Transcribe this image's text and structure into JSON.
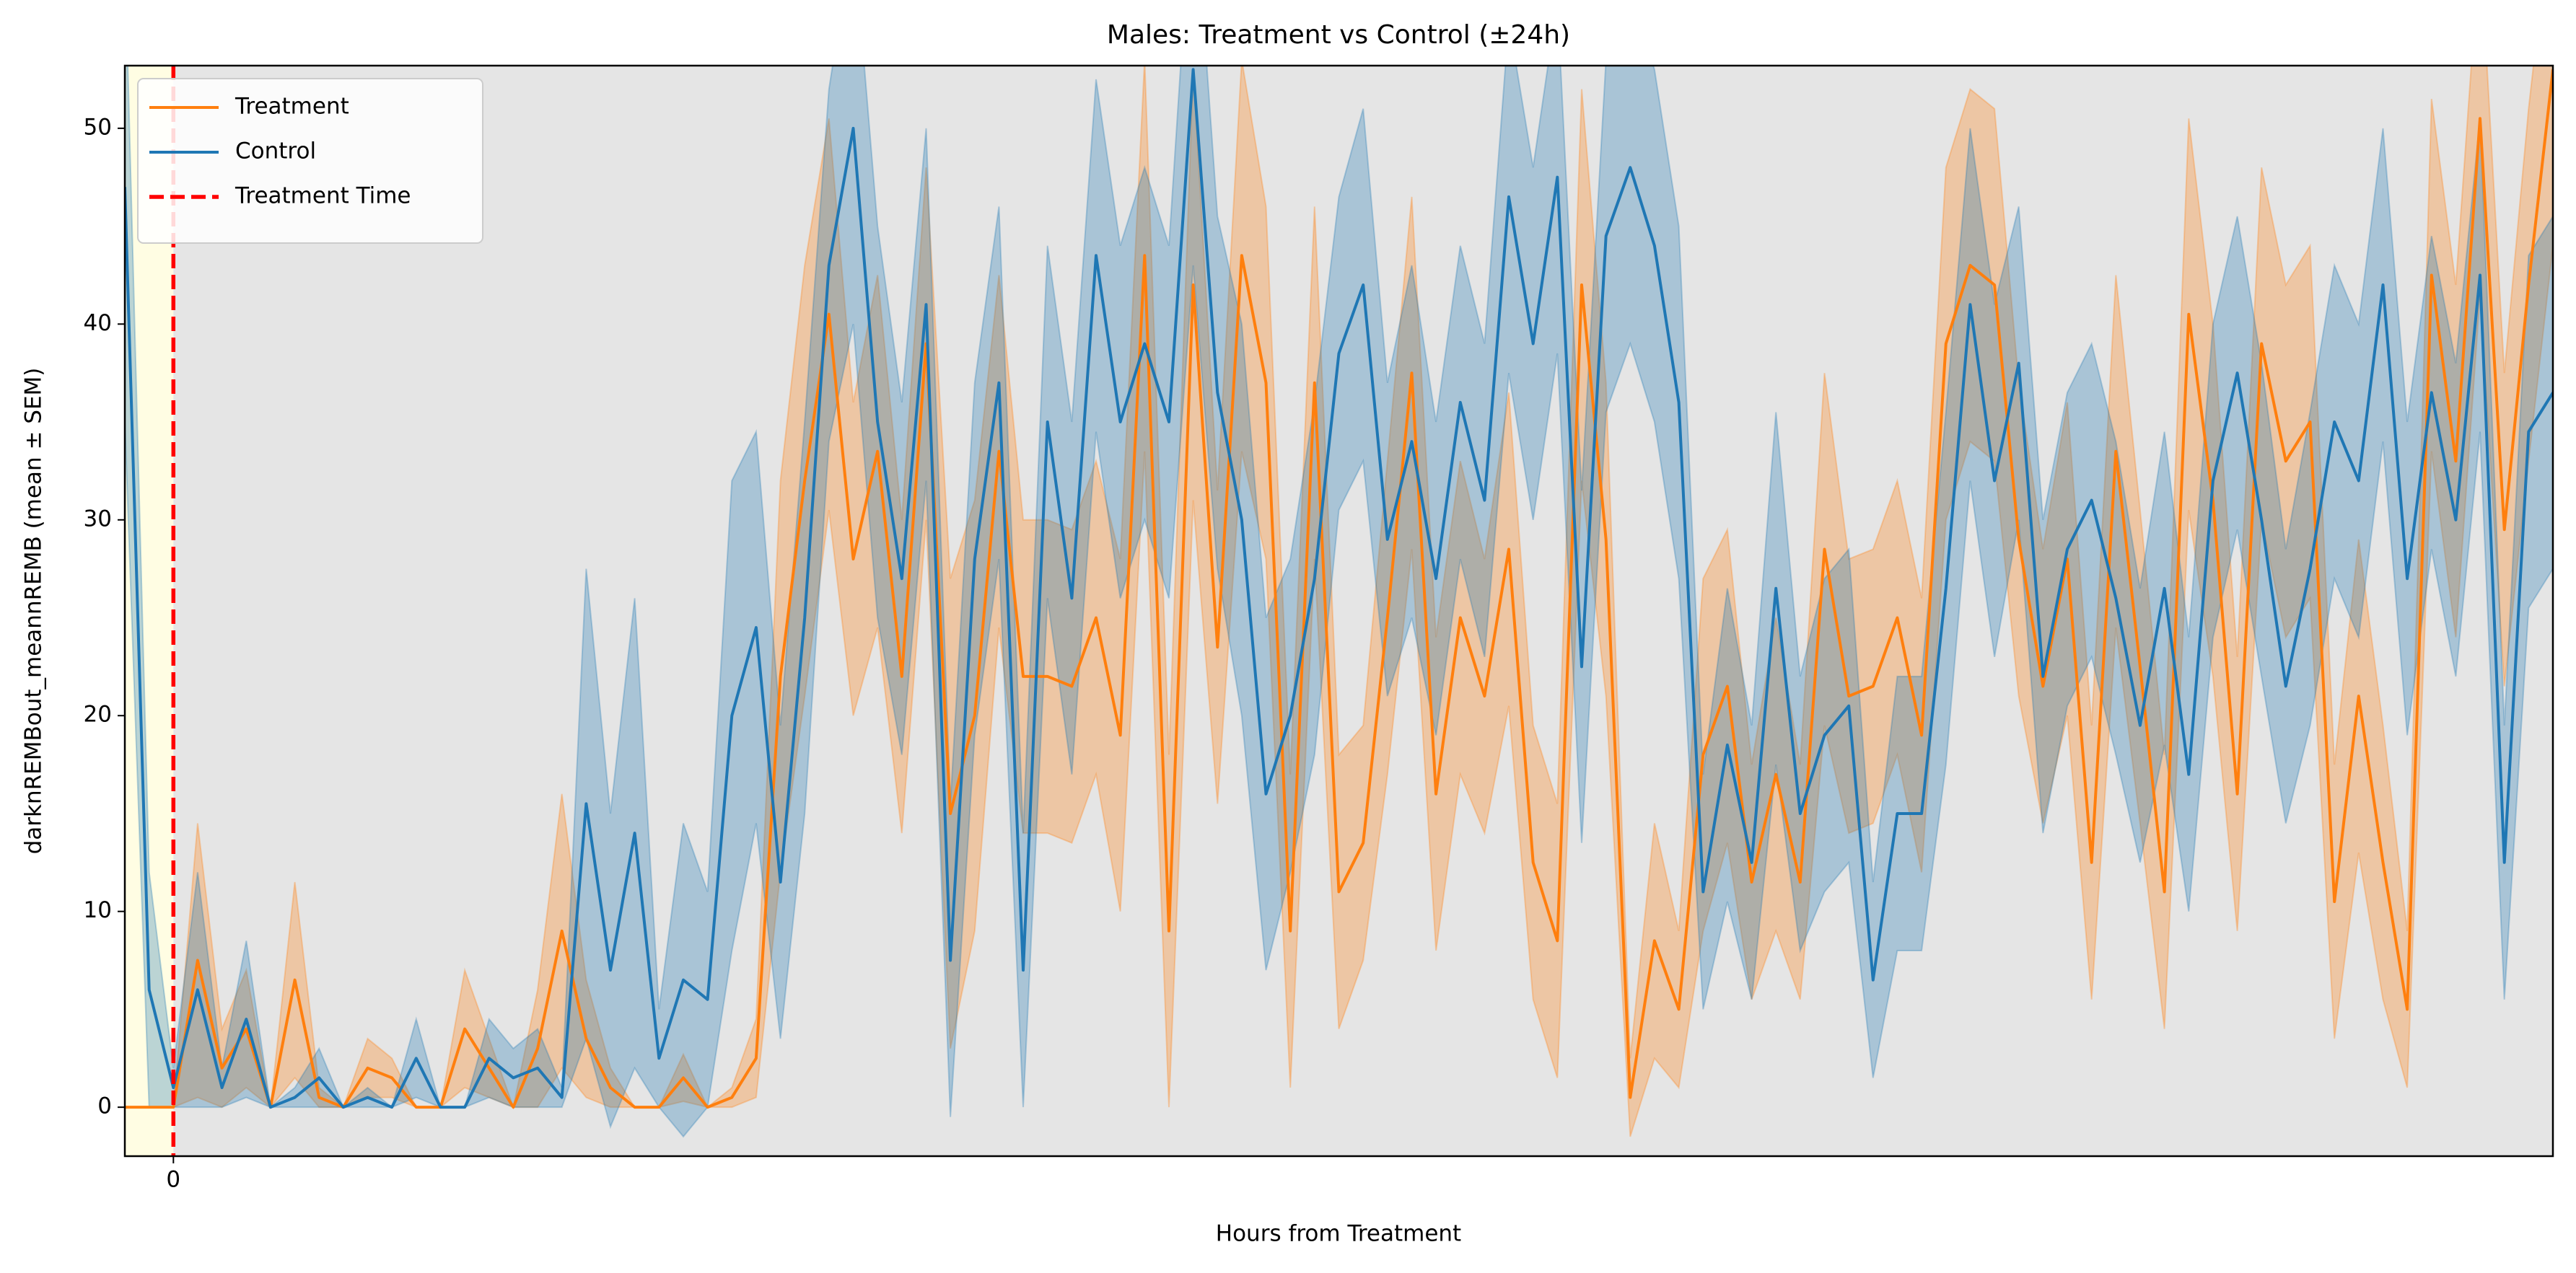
{
  "chart_data": {
    "type": "line",
    "title": "Males: Treatment vs Control (±24h)",
    "x_label": "Hours from Treatment",
    "y_label": "darknREMBout_meannREMB (mean ± SEM)",
    "xlim": [
      -0.5,
      24.5
    ],
    "ylim": [
      -2.5,
      53.2
    ],
    "xticks": [
      0
    ],
    "yticks": [
      0,
      10,
      20,
      30,
      40,
      50
    ],
    "legend": "upper left",
    "shaded_spans": [
      {
        "x": [
          -0.5,
          0
        ],
        "color": "#fffde3"
      },
      {
        "x": [
          0,
          24.5
        ],
        "color": "#e5e5e5"
      }
    ],
    "vlines": [
      {
        "name": "Treatment Time",
        "x": 0,
        "color": "#ff0000"
      }
    ],
    "x": [
      -0.5,
      -0.25,
      0,
      0.25,
      0.5,
      0.75,
      1,
      1.25,
      1.5,
      1.75,
      2,
      2.25,
      2.5,
      2.75,
      3,
      3.25,
      3.5,
      3.75,
      4,
      4.25,
      4.5,
      4.75,
      5,
      5.25,
      5.5,
      5.75,
      6,
      6.25,
      6.5,
      6.75,
      7,
      7.25,
      7.5,
      7.75,
      8,
      8.25,
      8.5,
      8.75,
      9,
      9.25,
      9.5,
      9.75,
      10,
      10.25,
      10.5,
      10.75,
      11,
      11.25,
      11.5,
      11.75,
      12,
      12.25,
      12.5,
      12.75,
      13,
      13.25,
      13.5,
      13.75,
      14,
      14.25,
      14.5,
      14.75,
      15,
      15.25,
      15.5,
      15.75,
      16,
      16.25,
      16.5,
      16.75,
      17,
      17.25,
      17.5,
      17.75,
      18,
      18.25,
      18.5,
      18.75,
      19,
      19.25,
      19.5,
      19.75,
      20,
      20.25,
      20.5,
      20.75,
      21,
      21.25,
      21.5,
      21.75,
      22,
      22.25,
      22.5,
      22.75,
      23,
      23.25,
      23.5,
      23.75,
      24,
      24.25,
      24.5
    ],
    "series": [
      {
        "name": "Treatment",
        "color": "#ff7f0e",
        "values": [
          0,
          0,
          0,
          7.5,
          2,
          4,
          0,
          6.5,
          0.5,
          0,
          2,
          1.5,
          0,
          0,
          4,
          2,
          0,
          3,
          9,
          3.5,
          1,
          0,
          0,
          1.5,
          0,
          0.5,
          2.5,
          22,
          32,
          40.5,
          28,
          33.5,
          22,
          39,
          15,
          20,
          33.5,
          22,
          22,
          21.5,
          25,
          19,
          43.5,
          9,
          42,
          23.5,
          43.5,
          37,
          9,
          37,
          11,
          13.5,
          25,
          37.5,
          16,
          25,
          21,
          28.5,
          12.5,
          8.5,
          42,
          29,
          0.5,
          8.5,
          5,
          18,
          21.5,
          11.5,
          17,
          11.5,
          28.5,
          21,
          21.5,
          25,
          19,
          39,
          43,
          42,
          29,
          21.5,
          28,
          12.5,
          33.5,
          22.5,
          11,
          40.5,
          31,
          16,
          39,
          33,
          35,
          10.5,
          21,
          12.5,
          5,
          42.5,
          33,
          50.5,
          29.5,
          42,
          53
        ],
        "sem": [
          0,
          0,
          0,
          7,
          2,
          3,
          0,
          5,
          0.5,
          0,
          1.5,
          1,
          0,
          0,
          3,
          1.5,
          0,
          3,
          7,
          3,
          1,
          0,
          0,
          1.2,
          0,
          0.5,
          2,
          10,
          11,
          10,
          8,
          9,
          8,
          9,
          12,
          11,
          9,
          8,
          8,
          8,
          8,
          9,
          10,
          9,
          11,
          8,
          10,
          9,
          8,
          9,
          7,
          6,
          8,
          9,
          8,
          8,
          7,
          8,
          7,
          7,
          10,
          8,
          2,
          6,
          4,
          9,
          8,
          6,
          8,
          6,
          9,
          7,
          7,
          7,
          7,
          9,
          9,
          9,
          8,
          7,
          8,
          7,
          9,
          8,
          7,
          10,
          9,
          7,
          9,
          9,
          9,
          7,
          8,
          7,
          4,
          9,
          9,
          9,
          8,
          9,
          9
        ]
      },
      {
        "name": "Control",
        "color": "#1f77b4",
        "values": [
          47,
          6,
          1,
          6,
          1,
          4.5,
          0,
          0.5,
          1.5,
          0,
          0.5,
          0,
          2.5,
          0,
          0,
          2.5,
          1.5,
          2,
          0.5,
          15.5,
          7,
          14,
          2.5,
          6.5,
          5.5,
          20,
          24.5,
          11.5,
          25,
          43,
          50,
          35,
          27,
          41,
          7.5,
          28,
          37,
          7,
          35,
          26,
          43.5,
          35,
          39,
          35,
          53,
          36.5,
          30,
          16,
          20,
          27,
          38.5,
          42,
          29,
          34,
          27,
          36,
          31,
          46.5,
          39,
          47.5,
          22.5,
          44.5,
          48,
          44,
          36,
          11,
          18.5,
          12.5,
          26.5,
          15,
          19,
          20.5,
          6.5,
          15,
          15,
          26.5,
          41,
          32,
          38,
          22,
          28.5,
          31,
          26,
          19.5,
          26.5,
          17,
          32,
          37.5,
          30,
          21.5,
          27.5,
          35,
          32,
          42,
          27,
          36.5,
          30,
          42.5,
          12.5,
          34.5,
          36.5
        ],
        "sem": [
          12,
          6,
          1,
          6,
          1,
          4,
          0,
          0.5,
          1.5,
          0,
          0.5,
          0,
          2,
          0,
          0,
          2,
          1.5,
          2,
          0.5,
          12,
          8,
          12,
          2.5,
          8,
          5.5,
          12,
          10,
          8,
          10,
          9,
          10,
          10,
          9,
          9,
          8,
          9,
          9,
          7,
          9,
          9,
          9,
          9,
          9,
          9,
          10,
          9,
          10,
          9,
          8,
          9,
          8,
          9,
          8,
          9,
          8,
          8,
          8,
          9,
          9,
          9,
          9,
          9,
          9,
          9,
          9,
          6,
          8,
          7,
          9,
          7,
          8,
          8,
          5,
          7,
          7,
          9,
          9,
          9,
          8,
          8,
          8,
          8,
          8,
          7,
          8,
          7,
          8,
          8,
          8,
          7,
          8,
          8,
          8,
          8,
          8,
          8,
          8,
          8,
          7,
          9,
          9
        ]
      }
    ]
  }
}
